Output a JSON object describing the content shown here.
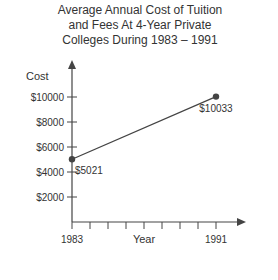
{
  "chart_data": {
    "type": "line",
    "title": "Average Annual Cost of Tuition and Fees At 4-Year Private Colleges During 1983 – 1991",
    "x_label": "Year",
    "y_label": "Cost",
    "x": [
      1983,
      1991
    ],
    "values": [
      5021,
      10033
    ],
    "value_labels": [
      "$5021",
      "$10033"
    ],
    "data_labels": true,
    "color": "#444444",
    "marker": "circle",
    "grid": false,
    "xlim": [
      1983,
      1992
    ],
    "xticks": [
      1983,
      1991
    ],
    "ylim": [
      0,
      12000
    ],
    "yticks": [
      {
        "value": 2000,
        "label": "$2000"
      },
      {
        "value": 4000,
        "label": "$4000"
      },
      {
        "value": 6000,
        "label": "$6000"
      },
      {
        "value": 8000,
        "label": "$8000"
      },
      {
        "value": 10000,
        "label": "$10000"
      }
    ]
  }
}
